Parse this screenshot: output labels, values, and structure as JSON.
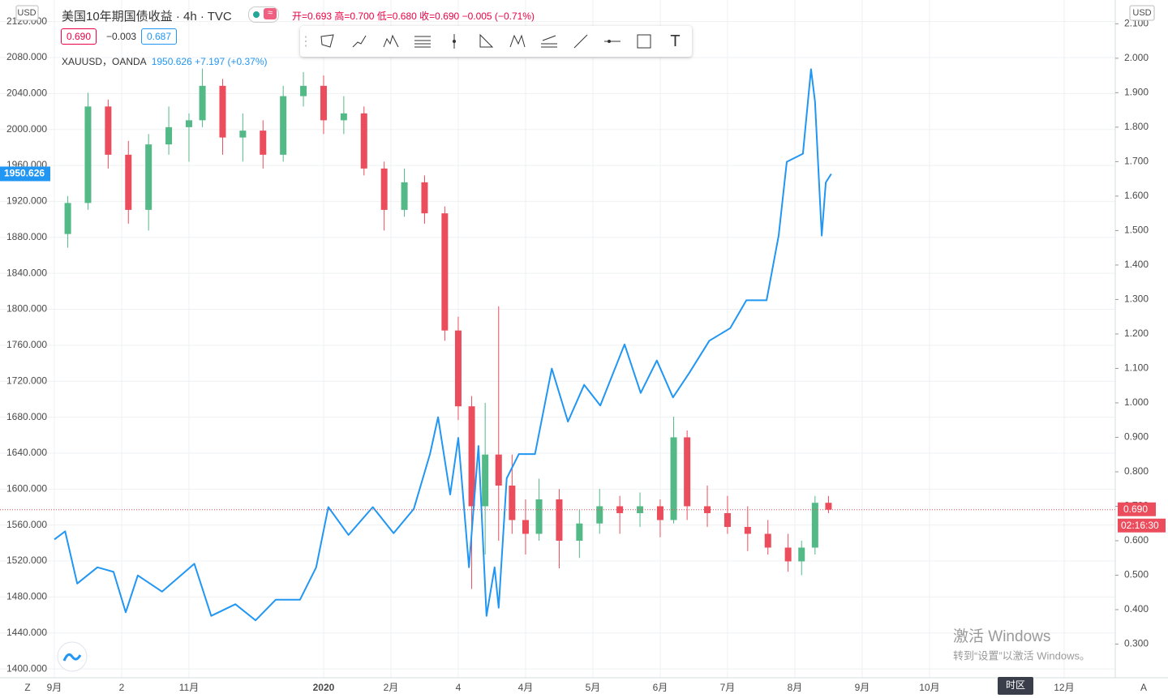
{
  "header": {
    "title": "美国10年期国债收益 · 4h · TVC",
    "ohlc": [
      "开=0.693",
      "高=0.700",
      "低=0.680",
      "收=0.690"
    ],
    "change": "−0.005 (−0.71%)",
    "bid": "0.690",
    "spread": "−0.003",
    "ask": "0.687",
    "compare": {
      "symbol": "XAUUSD，OANDA",
      "price": "1950.626",
      "change": "+7.197 (+0.37%)"
    }
  },
  "axis_units": {
    "left": "USD",
    "right": "USD"
  },
  "countdown": "02:16:30",
  "footer": {
    "left_button": "Z",
    "right_button": "A",
    "timezone": "时区"
  },
  "watermark": {
    "title": "激活 Windows",
    "subtitle": "转到“设置”以激活 Windows。"
  },
  "chart_data": {
    "type": "combo",
    "grid": true,
    "xlim": [
      -0.807,
      15.76
    ],
    "xticks": [
      {
        "value": 0,
        "label": "9月"
      },
      {
        "value": 1,
        "label": "2"
      },
      {
        "value": 2,
        "label": "11月"
      },
      {
        "value": 4,
        "label": "2020"
      },
      {
        "value": 5,
        "label": "2月"
      },
      {
        "value": 6,
        "label": "4"
      },
      {
        "value": 7,
        "label": "4月"
      },
      {
        "value": 8,
        "label": "5月"
      },
      {
        "value": 9,
        "label": "6月"
      },
      {
        "value": 10,
        "label": "7月"
      },
      {
        "value": 11,
        "label": "8月"
      },
      {
        "value": 12,
        "label": "9月"
      },
      {
        "value": 13,
        "label": "10月"
      },
      {
        "value": 15,
        "label": "12月"
      }
    ],
    "ylim": [
      1390.2,
      2144.0
    ],
    "yticks": [
      {
        "value": 1400,
        "label": "1400.000"
      },
      {
        "value": 1440,
        "label": "1440.000"
      },
      {
        "value": 1480,
        "label": "1480.000"
      },
      {
        "value": 1520,
        "label": "1520.000"
      },
      {
        "value": 1560,
        "label": "1560.000"
      },
      {
        "value": 1600,
        "label": "1600.000"
      },
      {
        "value": 1640,
        "label": "1640.000"
      },
      {
        "value": 1680,
        "label": "1680.000"
      },
      {
        "value": 1720,
        "label": "1720.000"
      },
      {
        "value": 1760,
        "label": "1760.000"
      },
      {
        "value": 1800,
        "label": "1800.000"
      },
      {
        "value": 1840,
        "label": "1840.000"
      },
      {
        "value": 1880,
        "label": "1880.000"
      },
      {
        "value": 1920,
        "label": "1920.000"
      },
      {
        "value": 1960,
        "label": "1960.000"
      },
      {
        "value": 2000,
        "label": "2000.000"
      },
      {
        "value": 2040,
        "label": "2040.000"
      },
      {
        "value": 2080,
        "label": "2080.000"
      },
      {
        "value": 2120,
        "label": "2120.000"
      }
    ],
    "y2lim": [
      0.2024,
      2.169
    ],
    "y2ticks": [
      {
        "value": 0.3,
        "label": "0.300"
      },
      {
        "value": 0.4,
        "label": "0.400"
      },
      {
        "value": 0.5,
        "label": "0.500"
      },
      {
        "value": 0.6,
        "label": "0.600"
      },
      {
        "value": 0.7,
        "label": "0.700"
      },
      {
        "value": 0.8,
        "label": "0.800"
      },
      {
        "value": 0.9,
        "label": "0.900"
      },
      {
        "value": 1.0,
        "label": "1.000"
      },
      {
        "value": 1.1,
        "label": "1.100"
      },
      {
        "value": 1.2,
        "label": "1.200"
      },
      {
        "value": 1.3,
        "label": "1.300"
      },
      {
        "value": 1.4,
        "label": "1.400"
      },
      {
        "value": 1.5,
        "label": "1.500"
      },
      {
        "value": 1.6,
        "label": "1.600"
      },
      {
        "value": 1.7,
        "label": "1.700"
      },
      {
        "value": 1.8,
        "label": "1.800"
      },
      {
        "value": 1.9,
        "label": "1.900"
      },
      {
        "value": 2.0,
        "label": "2.000"
      },
      {
        "value": 2.1,
        "label": "2.100"
      }
    ],
    "series": [
      {
        "name": "XAUUSD",
        "type": "line",
        "color": "#2196f3",
        "x": [
          0,
          0.16,
          0.34,
          0.64,
          0.88,
          1.06,
          1.24,
          1.6,
          2.08,
          2.33,
          2.69,
          2.99,
          3.29,
          3.65,
          3.89,
          4.07,
          4.37,
          4.73,
          5.04,
          5.34,
          5.58,
          5.7,
          5.88,
          6.0,
          6.16,
          6.3,
          6.42,
          6.54,
          6.6,
          6.72,
          6.9,
          7.14,
          7.39,
          7.63,
          7.87,
          8.11,
          8.47,
          8.71,
          8.95,
          9.19,
          9.43,
          9.73,
          10.04,
          10.28,
          10.58,
          10.76,
          10.88,
          11.12,
          11.24,
          11.3,
          11.4,
          11.46,
          11.54
        ],
        "values": [
          1544,
          1553,
          1495,
          1513,
          1508,
          1463,
          1504,
          1486,
          1517,
          1459,
          1472,
          1454,
          1477,
          1477,
          1513,
          1580,
          1549,
          1580,
          1551,
          1578,
          1639,
          1680,
          1594,
          1657,
          1513,
          1648,
          1459,
          1513,
          1468,
          1612,
          1639,
          1639,
          1734,
          1675,
          1716,
          1693,
          1761,
          1707,
          1743,
          1702,
          1729,
          1765,
          1779,
          1810,
          1810,
          1882,
          1964,
          1973,
          2067,
          2031,
          1882,
          1941,
          1950.626
        ]
      },
      {
        "name": "美国10年期国债收益",
        "type": "candlestick",
        "axis": "y2",
        "up_color": "#53b987",
        "down_color": "#eb4d5c",
        "x": [
          0.2,
          0.5,
          0.8,
          1.1,
          1.4,
          1.7,
          2.0,
          2.2,
          2.5,
          2.8,
          3.1,
          3.4,
          3.7,
          4.0,
          4.3,
          4.6,
          4.9,
          5.2,
          5.5,
          5.8,
          6.0,
          6.2,
          6.4,
          6.6,
          6.8,
          7.0,
          7.2,
          7.5,
          7.8,
          8.1,
          8.4,
          8.7,
          9.0,
          9.2,
          9.4,
          9.7,
          10.0,
          10.3,
          10.6,
          10.9,
          11.1,
          11.3,
          11.5
        ],
        "open": [
          1.49,
          1.58,
          1.86,
          1.72,
          1.56,
          1.75,
          1.8,
          1.82,
          1.92,
          1.77,
          1.79,
          1.72,
          1.89,
          1.92,
          1.82,
          1.84,
          1.68,
          1.56,
          1.64,
          1.55,
          1.21,
          0.99,
          0.7,
          0.85,
          0.76,
          0.66,
          0.62,
          0.72,
          0.6,
          0.65,
          0.7,
          0.68,
          0.7,
          0.66,
          0.9,
          0.7,
          0.68,
          0.64,
          0.62,
          0.58,
          0.54,
          0.58,
          0.71
        ],
        "high": [
          1.6,
          1.9,
          1.88,
          1.76,
          1.78,
          1.86,
          1.84,
          1.97,
          1.94,
          1.84,
          1.82,
          1.92,
          1.96,
          1.95,
          1.89,
          1.86,
          1.7,
          1.68,
          1.66,
          1.57,
          1.25,
          1.02,
          1.0,
          1.28,
          0.85,
          0.72,
          0.78,
          0.75,
          0.69,
          0.75,
          0.73,
          0.74,
          0.72,
          0.96,
          0.92,
          0.76,
          0.73,
          0.7,
          0.66,
          0.62,
          0.6,
          0.73,
          0.73
        ],
        "low": [
          1.45,
          1.56,
          1.68,
          1.52,
          1.5,
          1.72,
          1.7,
          1.8,
          1.72,
          1.7,
          1.68,
          1.7,
          1.86,
          1.78,
          1.78,
          1.66,
          1.5,
          1.54,
          1.52,
          1.18,
          0.95,
          0.46,
          0.56,
          0.6,
          0.62,
          0.56,
          0.6,
          0.52,
          0.55,
          0.62,
          0.62,
          0.64,
          0.61,
          0.65,
          0.66,
          0.64,
          0.62,
          0.57,
          0.56,
          0.51,
          0.5,
          0.56,
          0.68
        ],
        "close": [
          1.58,
          1.86,
          1.72,
          1.56,
          1.75,
          1.8,
          1.82,
          1.92,
          1.77,
          1.79,
          1.72,
          1.89,
          1.92,
          1.82,
          1.84,
          1.68,
          1.56,
          1.64,
          1.55,
          1.21,
          0.99,
          0.7,
          0.85,
          0.76,
          0.66,
          0.62,
          0.72,
          0.6,
          0.65,
          0.7,
          0.68,
          0.7,
          0.66,
          0.9,
          0.7,
          0.68,
          0.64,
          0.62,
          0.58,
          0.54,
          0.58,
          0.71,
          0.69
        ]
      }
    ]
  }
}
